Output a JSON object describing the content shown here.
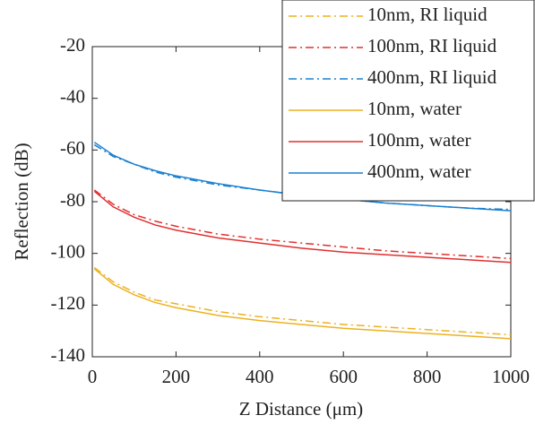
{
  "chart_data": {
    "type": "line",
    "xlabel": "Z Distance (μm)",
    "ylabel": "Reflection (dB)",
    "x": [
      5,
      50,
      100,
      150,
      200,
      300,
      400,
      500,
      600,
      700,
      800,
      900,
      1000
    ],
    "series": [
      {
        "name": "10nm, RI liquid",
        "color": "#edb120",
        "style": "dash-dot",
        "values": [
          -105.5,
          -111,
          -115,
          -118,
          -119.5,
          -122.5,
          -124.5,
          -126,
          -127.5,
          -128.5,
          -129.5,
          -130.5,
          -131.5
        ]
      },
      {
        "name": "100nm, RI liquid",
        "color": "#e0302e",
        "style": "dash-dot",
        "values": [
          -75.5,
          -81,
          -85,
          -87.5,
          -89.5,
          -92.5,
          -94.5,
          -96,
          -97.5,
          -99,
          -100,
          -101,
          -102
        ]
      },
      {
        "name": "400nm, RI liquid",
        "color": "#1a80d0",
        "style": "dash-dot",
        "values": [
          -58,
          -62.5,
          -65.5,
          -68.5,
          -70.5,
          -73.5,
          -75.5,
          -77.5,
          -79,
          -80.5,
          -81.5,
          -82.5,
          -83
        ]
      },
      {
        "name": "10nm, water",
        "color": "#edb120",
        "style": "solid",
        "values": [
          -106,
          -112,
          -116,
          -119,
          -121,
          -124,
          -126,
          -127.5,
          -129,
          -130,
          -131,
          -132,
          -133
        ]
      },
      {
        "name": "100nm, water",
        "color": "#e0302e",
        "style": "solid",
        "values": [
          -76,
          -82,
          -86,
          -89,
          -91,
          -94,
          -96,
          -98,
          -99.5,
          -100.5,
          -101.5,
          -102.5,
          -103.5
        ]
      },
      {
        "name": "400nm, water",
        "color": "#1a80d0",
        "style": "solid",
        "values": [
          -57,
          -62,
          -65.5,
          -68,
          -70,
          -73,
          -75.5,
          -77.5,
          -79,
          -80.5,
          -81.5,
          -82.5,
          -83.5
        ]
      }
    ],
    "xlim": [
      0,
      1000
    ],
    "xticks": [
      0,
      200,
      400,
      600,
      800,
      1000
    ],
    "ylim": [
      -140,
      -20
    ],
    "yticks": [
      -140,
      -120,
      -100,
      -80,
      -60,
      -40,
      -20
    ],
    "legend": "upper right",
    "grid": false
  }
}
